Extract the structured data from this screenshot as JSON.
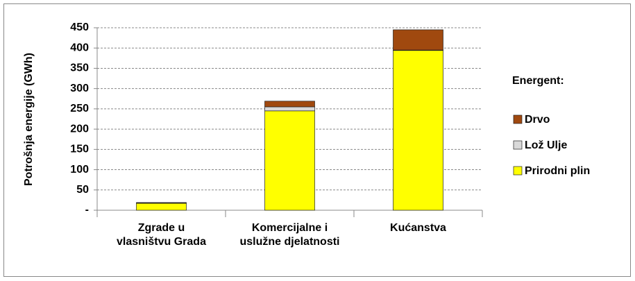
{
  "chart_data": {
    "type": "stacked-bar",
    "y_label": "Potrošnja energije (GWh)",
    "categories": [
      "Zgrade u vlasništvu Grada",
      "Komercijalne i uslužne djelatnosti",
      "Kućanstva"
    ],
    "series": [
      {
        "name": "Prirodni plin",
        "color": "#ffff00",
        "values": [
          17,
          245,
          394
        ]
      },
      {
        "name": "Lož Ulje",
        "color": "#d9d9d9",
        "values": [
          1,
          10,
          1
        ]
      },
      {
        "name": "Drvo",
        "color": "#a0490f",
        "values": [
          1,
          14,
          50
        ]
      }
    ],
    "ylim": [
      0,
      450
    ],
    "yticks": [
      {
        "value": 0,
        "label": "-"
      },
      50,
      100,
      150,
      200,
      250,
      300,
      350,
      400,
      450
    ],
    "grid": true,
    "legend_title": "Energent:",
    "legend": "right"
  }
}
